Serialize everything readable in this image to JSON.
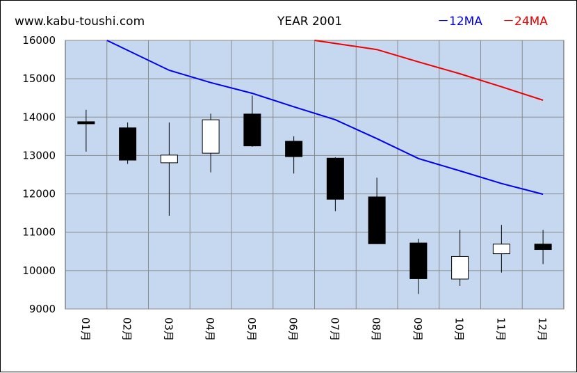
{
  "header": {
    "site": "www.kabu-toushi.com",
    "title": "YEAR 2001",
    "legend_ma12": "－12MA",
    "legend_ma24": "－24MA"
  },
  "colors": {
    "plot_bg": "#c5d8f0",
    "grid": "#8a8a8a",
    "ma12": "#0000ee",
    "ma24": "#ee0000",
    "up_fill": "#ffffff",
    "down_fill": "#000000"
  },
  "chart_data": {
    "type": "candlestick",
    "title": "YEAR 2001",
    "categories": [
      "01月",
      "02月",
      "03月",
      "04月",
      "05月",
      "06月",
      "07月",
      "08月",
      "09月",
      "10月",
      "11月",
      "12月"
    ],
    "ylim": [
      9000,
      16000
    ],
    "yticks": [
      9000,
      10000,
      11000,
      12000,
      13000,
      14000,
      15000,
      16000
    ],
    "grid": true,
    "legend_position": "top-right",
    "candles": [
      {
        "open": 13880,
        "high": 14190,
        "low": 13100,
        "close": 13840
      },
      {
        "open": 13720,
        "high": 13860,
        "low": 12780,
        "close": 12880
      },
      {
        "open": 12810,
        "high": 13860,
        "low": 11430,
        "close": 13010
      },
      {
        "open": 13060,
        "high": 14090,
        "low": 12560,
        "close": 13930
      },
      {
        "open": 14080,
        "high": 14560,
        "low": 13230,
        "close": 13250
      },
      {
        "open": 13370,
        "high": 13500,
        "low": 12530,
        "close": 12970
      },
      {
        "open": 12930,
        "high": 12950,
        "low": 11550,
        "close": 11860
      },
      {
        "open": 11920,
        "high": 12420,
        "low": 10700,
        "close": 10700
      },
      {
        "open": 10720,
        "high": 10830,
        "low": 9390,
        "close": 9790
      },
      {
        "open": 9780,
        "high": 11060,
        "low": 9600,
        "close": 10370
      },
      {
        "open": 10440,
        "high": 11190,
        "low": 9950,
        "close": 10690
      },
      {
        "open": 10690,
        "high": 11060,
        "low": 10170,
        "close": 10550
      }
    ],
    "series": [
      {
        "name": "12MA",
        "x": [
          1.5,
          3,
          4,
          5,
          6,
          7,
          8,
          9,
          10,
          11,
          12
        ],
        "values": [
          16000,
          15220,
          14900,
          14620,
          14270,
          13930,
          13440,
          12920,
          12600,
          12270,
          11990
        ]
      },
      {
        "name": "24MA",
        "x": [
          6.5,
          8,
          9,
          10,
          11,
          12
        ],
        "values": [
          16000,
          15760,
          15440,
          15130,
          14790,
          14440
        ]
      }
    ]
  }
}
